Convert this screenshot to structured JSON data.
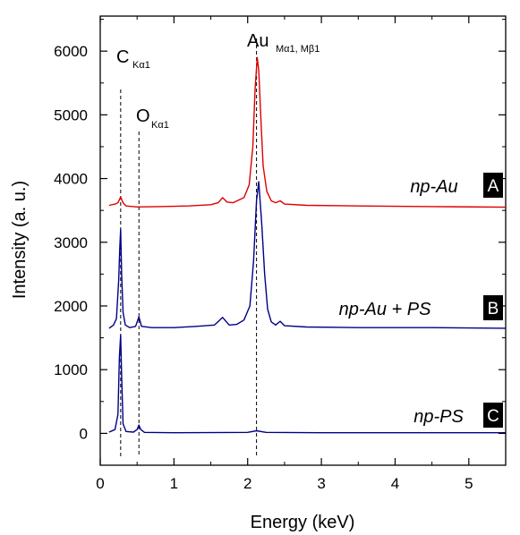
{
  "chart_data": {
    "type": "line",
    "xlabel": "Energy (keV)",
    "ylabel": "Intensity (a. u.)",
    "xlim": [
      0,
      5.5
    ],
    "ylim": [
      -500,
      6550
    ],
    "x_ticks": [
      0,
      1,
      2,
      3,
      4,
      5
    ],
    "y_ticks": [
      0,
      1000,
      2000,
      3000,
      4000,
      5000,
      6000
    ],
    "grid": false,
    "annotations": [
      {
        "id": "c",
        "main": "C",
        "sub": "Kα1",
        "x": 0.277
      },
      {
        "id": "o",
        "main": "O",
        "sub": "Kα1",
        "x": 0.525
      },
      {
        "id": "au",
        "main": "Au",
        "sub": "Mα1, Mβ1",
        "x": 2.12
      }
    ],
    "series": [
      {
        "name": "np-Au",
        "badge": "A",
        "color": "#dd0000",
        "x": [
          0.12,
          0.2,
          0.24,
          0.277,
          0.31,
          0.35,
          0.5,
          0.8,
          1.2,
          1.5,
          1.6,
          1.66,
          1.72,
          1.8,
          1.95,
          2.02,
          2.07,
          2.1,
          2.13,
          2.15,
          2.18,
          2.21,
          2.26,
          2.32,
          2.38,
          2.44,
          2.5,
          2.8,
          3.5,
          4.5,
          5.5
        ],
        "values": [
          3580,
          3600,
          3620,
          3710,
          3620,
          3570,
          3555,
          3560,
          3570,
          3590,
          3620,
          3700,
          3630,
          3620,
          3700,
          3900,
          4500,
          5400,
          5900,
          5700,
          4900,
          4200,
          3800,
          3650,
          3620,
          3650,
          3600,
          3580,
          3570,
          3560,
          3550
        ]
      },
      {
        "name": "np-Au + PS",
        "badge": "B",
        "color": "#000088",
        "x": [
          0.12,
          0.18,
          0.22,
          0.25,
          0.265,
          0.277,
          0.29,
          0.31,
          0.34,
          0.4,
          0.48,
          0.525,
          0.56,
          0.7,
          1.0,
          1.3,
          1.55,
          1.66,
          1.75,
          1.85,
          1.95,
          2.03,
          2.08,
          2.12,
          2.15,
          2.19,
          2.23,
          2.27,
          2.32,
          2.38,
          2.44,
          2.5,
          2.8,
          3.5,
          4.5,
          5.5
        ],
        "values": [
          1650,
          1700,
          1800,
          2400,
          2900,
          3200,
          2500,
          1900,
          1700,
          1660,
          1680,
          1830,
          1680,
          1660,
          1660,
          1680,
          1700,
          1820,
          1700,
          1710,
          1780,
          2000,
          2700,
          3650,
          3950,
          3300,
          2500,
          1950,
          1750,
          1700,
          1760,
          1690,
          1670,
          1660,
          1660,
          1650
        ]
      },
      {
        "name": "np-PS",
        "badge": "C",
        "color": "#000088",
        "x": [
          0.12,
          0.2,
          0.24,
          0.26,
          0.277,
          0.29,
          0.31,
          0.35,
          0.45,
          0.5,
          0.525,
          0.55,
          0.6,
          1.0,
          2.0,
          2.12,
          2.25,
          3.0,
          4.0,
          5.5
        ],
        "values": [
          20,
          60,
          300,
          1200,
          1540,
          900,
          150,
          30,
          20,
          60,
          130,
          60,
          15,
          10,
          15,
          40,
          15,
          10,
          10,
          10
        ]
      }
    ]
  }
}
